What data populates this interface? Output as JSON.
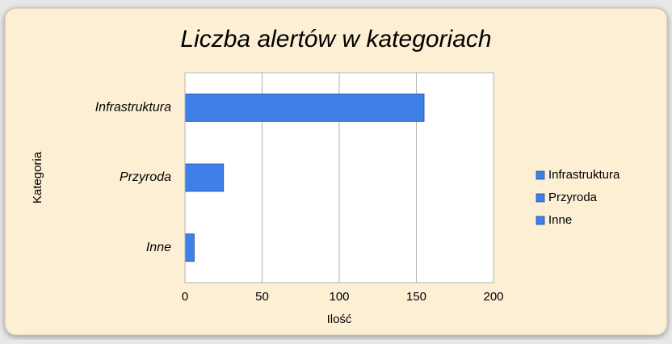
{
  "chart_data": {
    "type": "bar",
    "orientation": "horizontal",
    "title": "Liczba alertów w kategoriach",
    "x_label": "Ilość",
    "y_label": "Kategoria",
    "categories": [
      "Infrastruktura",
      "Przyroda",
      "Inne"
    ],
    "values": [
      155,
      25,
      6
    ],
    "color": "#3f7fe8",
    "xlim": [
      0,
      200
    ],
    "xticks": [
      0,
      50,
      100,
      150,
      200
    ],
    "grid": true,
    "legend": "right"
  }
}
